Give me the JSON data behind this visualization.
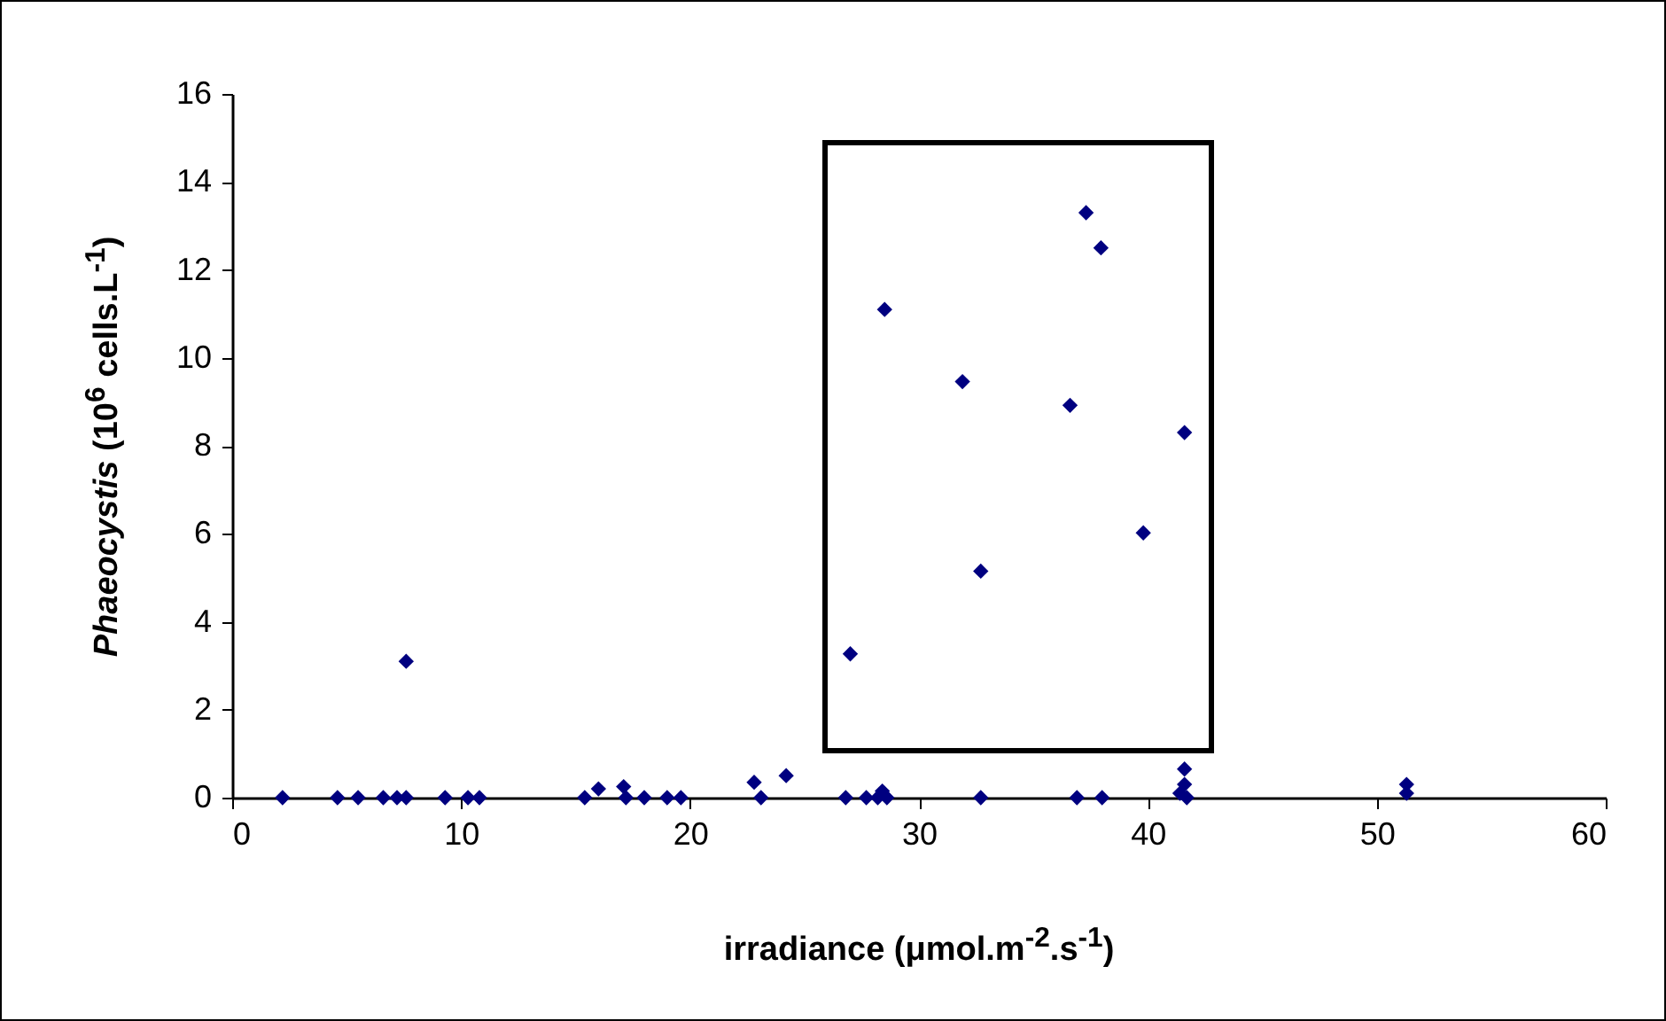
{
  "chart_data": {
    "type": "scatter",
    "xlabel": "irradiance (μmol.m$^{-2}$.s$^{-1}$)",
    "ylabel": "Phaeocystis (10$^{6}$ cells.L$^{-1}$)",
    "x": [
      2.2,
      4.6,
      5.5,
      6.6,
      7.2,
      7.6,
      9.3,
      10.3,
      10.8,
      15.4,
      16.0,
      17.1,
      17.2,
      18.0,
      19.0,
      19.6,
      22.8,
      23.1,
      24.2,
      26.8,
      27.7,
      28.2,
      28.4,
      28.6,
      32.7,
      36.9,
      38.0,
      41.4,
      41.6,
      41.6,
      41.7,
      51.3,
      51.3,
      7.6,
      37.3,
      37.95,
      28.5,
      31.9,
      36.6,
      41.6,
      39.8,
      32.7,
      27.0
    ],
    "series": [
      {
        "color": "#000080",
        "values": [
          0,
          0,
          0,
          0,
          0,
          0,
          0,
          0,
          0,
          0,
          0.2,
          0.25,
          0,
          0,
          0,
          0,
          0.35,
          0,
          0.5,
          0,
          0,
          0,
          0.15,
          0,
          0,
          0,
          0,
          0.1,
          0.3,
          0.65,
          0,
          0.1,
          0.3,
          3.1,
          13.3,
          12.5,
          11.1,
          9.46,
          8.92,
          8.3,
          6.02,
          5.15,
          3.27
        ]
      }
    ],
    "xlim": [
      0,
      60
    ],
    "xticks": [
      0,
      10,
      20,
      30,
      40,
      50,
      60
    ],
    "ylim": [
      0,
      16
    ],
    "yticks": [
      0,
      2,
      4,
      6,
      8,
      10,
      12,
      14,
      16
    ],
    "grid": false,
    "marker": "diamond"
  }
}
